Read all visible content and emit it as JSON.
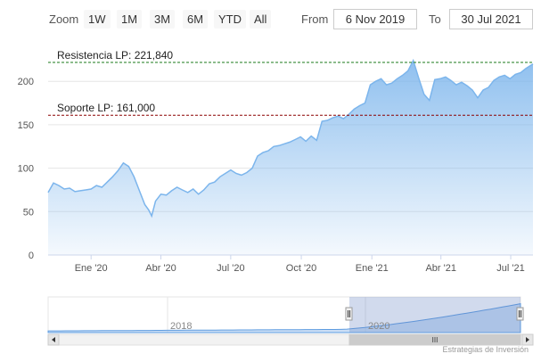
{
  "toolbar": {
    "zoom_label": "Zoom",
    "buttons": [
      "1W",
      "1M",
      "3M",
      "6M",
      "YTD",
      "All"
    ],
    "from_label": "From",
    "from_value": "6 Nov 2019",
    "to_label": "To",
    "to_value": "30 Jul 2021"
  },
  "credits": "Estrategias de Inversión",
  "navigator": {
    "labels": [
      "2018",
      "2020"
    ],
    "scroll_grip": "III"
  },
  "colors": {
    "series_line": "#7cb5ec",
    "resistance": "#1a7a1a",
    "support": "#8b0000"
  },
  "chart_data": {
    "type": "area",
    "title": "",
    "xlabel": "",
    "ylabel": "",
    "ylim": [
      0,
      230
    ],
    "yticks": [
      0,
      50,
      100,
      150,
      200
    ],
    "ytick_labels": [
      "0",
      "50",
      "100",
      "150",
      "200"
    ],
    "xtick_labels": [
      "Ene '20",
      "Abr '20",
      "Jul '20",
      "Oct '20",
      "Ene '21",
      "Abr '21",
      "Jul '21"
    ],
    "xtick_dates": [
      "2020-01-01",
      "2020-04-01",
      "2020-07-01",
      "2020-10-01",
      "2021-01-01",
      "2021-04-01",
      "2021-07-01"
    ],
    "x_range": [
      "2019-11-06",
      "2021-07-30"
    ],
    "plot_lines": [
      {
        "label": "Resistencia LP: 221,840",
        "value": 221.84,
        "color": "#1a7a1a",
        "style": "dashed"
      },
      {
        "label": "Soporte LP: 161,000",
        "value": 161.0,
        "color": "#8b0000",
        "style": "dashed"
      }
    ],
    "series": [
      {
        "x": [
          "2019-11-06",
          "2019-11-13",
          "2019-11-20",
          "2019-11-27",
          "2019-12-04",
          "2019-12-11",
          "2019-12-18",
          "2019-12-25",
          "2020-01-01",
          "2020-01-08",
          "2020-01-15",
          "2020-01-22",
          "2020-01-29",
          "2020-02-05",
          "2020-02-12",
          "2020-02-19",
          "2020-02-26",
          "2020-03-04",
          "2020-03-11",
          "2020-03-16",
          "2020-03-20",
          "2020-03-25",
          "2020-04-01",
          "2020-04-08",
          "2020-04-15",
          "2020-04-22",
          "2020-04-29",
          "2020-05-06",
          "2020-05-13",
          "2020-05-20",
          "2020-05-27",
          "2020-06-03",
          "2020-06-10",
          "2020-06-17",
          "2020-06-24",
          "2020-07-01",
          "2020-07-08",
          "2020-07-15",
          "2020-07-22",
          "2020-07-29",
          "2020-08-05",
          "2020-08-12",
          "2020-08-19",
          "2020-08-26",
          "2020-09-02",
          "2020-09-09",
          "2020-09-16",
          "2020-09-23",
          "2020-09-30",
          "2020-10-07",
          "2020-10-14",
          "2020-10-21",
          "2020-10-28",
          "2020-11-04",
          "2020-11-11",
          "2020-11-18",
          "2020-11-25",
          "2020-12-02",
          "2020-12-09",
          "2020-12-16",
          "2020-12-23",
          "2020-12-30",
          "2021-01-06",
          "2021-01-13",
          "2021-01-20",
          "2021-01-27",
          "2021-02-03",
          "2021-02-10",
          "2021-02-17",
          "2021-02-24",
          "2021-03-03",
          "2021-03-10",
          "2021-03-17",
          "2021-03-24",
          "2021-03-31",
          "2021-04-07",
          "2021-04-14",
          "2021-04-21",
          "2021-04-28",
          "2021-05-05",
          "2021-05-12",
          "2021-05-19",
          "2021-05-26",
          "2021-06-02",
          "2021-06-09",
          "2021-06-16",
          "2021-06-23",
          "2021-06-30",
          "2021-07-07",
          "2021-07-14",
          "2021-07-21",
          "2021-07-30"
        ],
        "values": [
          72,
          83,
          80,
          76,
          77,
          73,
          74,
          75,
          76,
          80,
          78,
          84,
          90,
          97,
          106,
          102,
          90,
          74,
          58,
          52,
          45,
          62,
          70,
          69,
          74,
          78,
          75,
          72,
          76,
          70,
          75,
          82,
          84,
          90,
          94,
          98,
          94,
          92,
          95,
          100,
          114,
          118,
          120,
          125,
          126,
          128,
          130,
          133,
          136,
          131,
          137,
          132,
          154,
          155,
          158,
          160,
          157,
          162,
          168,
          172,
          175,
          196,
          200,
          203,
          196,
          198,
          203,
          207,
          212,
          224,
          204,
          185,
          178,
          202,
          203,
          205,
          201,
          196,
          199,
          195,
          190,
          181,
          190,
          193,
          201,
          205,
          207,
          203,
          208,
          210,
          215,
          220
        ]
      }
    ]
  }
}
